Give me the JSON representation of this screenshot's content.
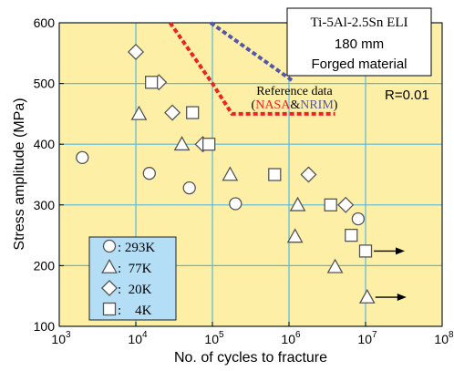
{
  "chart_data": {
    "type": "scatter",
    "xlabel": "No. of cycles to fracture",
    "ylabel": "Stress amplitude (MPa)",
    "x_scale": "log",
    "xlim": [
      1000,
      100000000
    ],
    "ylim": [
      100,
      600
    ],
    "x_ticks": [
      {
        "value": 1000,
        "base": "10",
        "exp": "3"
      },
      {
        "value": 10000,
        "base": "10",
        "exp": "4"
      },
      {
        "value": 100000,
        "base": "10",
        "exp": "5"
      },
      {
        "value": 1000000,
        "base": "10",
        "exp": "6"
      },
      {
        "value": 10000000,
        "base": "10",
        "exp": "7"
      },
      {
        "value": 100000000,
        "base": "10",
        "exp": "8"
      }
    ],
    "y_ticks": [
      "100",
      "200",
      "300",
      "400",
      "500",
      "600"
    ],
    "grid": true,
    "background": "#fdf0a6",
    "grid_color": "#59b8e0",
    "info_box": [
      "Ti-5Al-2.5Sn ELI",
      "180 mm",
      "Forged material"
    ],
    "r_ratio": "R=0.01",
    "reference": {
      "line1": "Reference data",
      "open": "(",
      "nasa": "NASA",
      "amp": "&",
      "nrim": "NRIM",
      "close": ")",
      "nasa_color": "#ee2222",
      "nrim_color": "#5555aa",
      "nasa_line": [
        [
          28000,
          600
        ],
        [
          100000,
          500
        ],
        [
          180000,
          450
        ],
        [
          4000000,
          450
        ]
      ],
      "nrim_line": [
        [
          95000,
          600
        ],
        [
          1100000,
          505
        ]
      ]
    },
    "series": [
      {
        "name": "293K",
        "label": ": 293K",
        "marker": "circle",
        "points": [
          [
            2000,
            378
          ],
          [
            15000,
            352
          ],
          [
            50000,
            328
          ],
          [
            200000,
            302
          ],
          [
            8000000,
            277
          ]
        ]
      },
      {
        "name": "77K",
        "label": ":  77K",
        "marker": "triangle",
        "points": [
          [
            11000,
            450
          ],
          [
            40000,
            400
          ],
          [
            170000,
            350
          ],
          [
            1300000,
            300
          ],
          [
            1200000,
            248
          ],
          [
            4000000,
            198
          ],
          [
            10500000,
            148
          ]
        ]
      },
      {
        "name": "20K",
        "label": ":  20K",
        "marker": "diamond",
        "points": [
          [
            10000,
            552
          ],
          [
            20000,
            502
          ],
          [
            30000,
            452
          ],
          [
            75000,
            400
          ],
          [
            1800000,
            350
          ],
          [
            5500000,
            300
          ]
        ]
      },
      {
        "name": "4K",
        "label": ":    4K",
        "marker": "square",
        "points": [
          [
            16000,
            502
          ],
          [
            55000,
            452
          ],
          [
            90000,
            400
          ],
          [
            650000,
            350
          ],
          [
            3500000,
            300
          ],
          [
            6500000,
            250
          ],
          [
            10000000,
            224
          ]
        ]
      }
    ],
    "runouts": [
      {
        "x": 10000000,
        "y": 224
      },
      {
        "x": 10500000,
        "y": 148
      }
    ]
  }
}
